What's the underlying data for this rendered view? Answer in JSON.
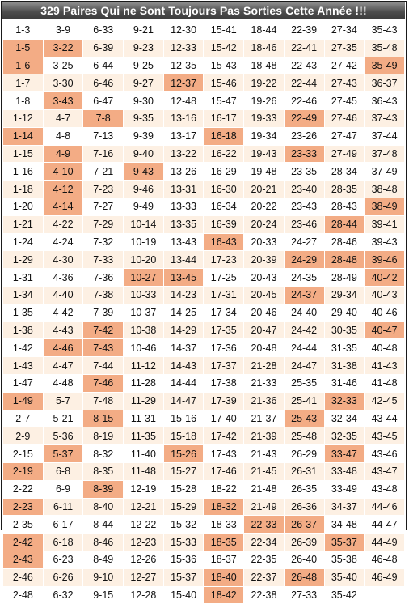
{
  "title": "329 Paires Qui ne Sont Toujours Pas Sorties Cette Année !!!",
  "highlight_color": "#f3ac85",
  "stripe_color": "#fdf0e3",
  "rows": [
    [
      "1-3",
      "3-9",
      "6-33",
      "9-21",
      "12-30",
      "15-41",
      "18-44",
      "22-39",
      "27-34",
      "35-43"
    ],
    [
      "1-5",
      "3-22",
      "6-39",
      "9-23",
      "12-33",
      "15-42",
      "18-46",
      "22-41",
      "27-35",
      "35-48"
    ],
    [
      "1-6",
      "3-25",
      "6-44",
      "9-25",
      "12-35",
      "15-43",
      "18-48",
      "22-43",
      "27-42",
      "35-49"
    ],
    [
      "1-7",
      "3-30",
      "6-46",
      "9-27",
      "12-37",
      "15-46",
      "19-22",
      "22-44",
      "27-43",
      "36-37"
    ],
    [
      "1-8",
      "3-43",
      "6-47",
      "9-30",
      "12-48",
      "15-47",
      "19-26",
      "22-46",
      "27-45",
      "36-43"
    ],
    [
      "1-12",
      "4-7",
      "7-8",
      "9-35",
      "13-16",
      "16-17",
      "19-33",
      "22-49",
      "27-46",
      "37-43"
    ],
    [
      "1-14",
      "4-8",
      "7-13",
      "9-39",
      "13-17",
      "16-18",
      "19-34",
      "23-26",
      "27-47",
      "37-44"
    ],
    [
      "1-15",
      "4-9",
      "7-16",
      "9-40",
      "13-22",
      "16-22",
      "19-43",
      "23-33",
      "27-49",
      "37-48"
    ],
    [
      "1-16",
      "4-10",
      "7-21",
      "9-43",
      "13-26",
      "16-29",
      "19-48",
      "23-35",
      "28-34",
      "37-49"
    ],
    [
      "1-18",
      "4-12",
      "7-23",
      "9-46",
      "13-31",
      "16-30",
      "20-21",
      "23-40",
      "28-35",
      "38-48"
    ],
    [
      "1-20",
      "4-14",
      "7-27",
      "9-49",
      "13-33",
      "16-34",
      "20-22",
      "23-43",
      "28-43",
      "38-49"
    ],
    [
      "1-21",
      "4-22",
      "7-29",
      "10-14",
      "13-35",
      "16-39",
      "20-24",
      "23-46",
      "28-44",
      "39-41"
    ],
    [
      "1-24",
      "4-24",
      "7-32",
      "10-19",
      "13-43",
      "16-43",
      "20-33",
      "24-27",
      "28-46",
      "39-43"
    ],
    [
      "1-29",
      "4-30",
      "7-33",
      "10-20",
      "13-44",
      "17-23",
      "20-39",
      "24-29",
      "28-48",
      "39-46"
    ],
    [
      "1-31",
      "4-36",
      "7-36",
      "10-27",
      "13-45",
      "17-25",
      "20-43",
      "24-35",
      "28-49",
      "40-42"
    ],
    [
      "1-34",
      "4-40",
      "7-38",
      "10-33",
      "14-23",
      "17-31",
      "20-45",
      "24-37",
      "29-34",
      "40-43"
    ],
    [
      "1-35",
      "4-42",
      "7-39",
      "10-37",
      "14-25",
      "17-34",
      "20-46",
      "24-40",
      "29-40",
      "40-46"
    ],
    [
      "1-38",
      "4-43",
      "7-42",
      "10-38",
      "14-29",
      "17-35",
      "20-47",
      "24-42",
      "30-35",
      "40-47"
    ],
    [
      "1-42",
      "4-46",
      "7-43",
      "10-46",
      "14-37",
      "17-36",
      "20-48",
      "24-44",
      "31-35",
      "40-48"
    ],
    [
      "1-43",
      "4-47",
      "7-44",
      "11-12",
      "14-43",
      "17-37",
      "21-28",
      "24-47",
      "31-38",
      "41-43"
    ],
    [
      "1-47",
      "4-48",
      "7-46",
      "11-28",
      "14-44",
      "17-38",
      "21-33",
      "25-35",
      "31-46",
      "41-48"
    ],
    [
      "1-49",
      "5-7",
      "7-48",
      "11-29",
      "14-47",
      "17-39",
      "21-36",
      "25-41",
      "32-33",
      "42-45"
    ],
    [
      "2-7",
      "5-21",
      "8-15",
      "11-31",
      "15-16",
      "17-40",
      "21-37",
      "25-43",
      "32-34",
      "43-44"
    ],
    [
      "2-9",
      "5-36",
      "8-19",
      "11-35",
      "15-18",
      "17-42",
      "21-39",
      "25-48",
      "32-35",
      "43-45"
    ],
    [
      "2-15",
      "5-37",
      "8-32",
      "11-40",
      "15-26",
      "17-43",
      "21-43",
      "26-29",
      "33-47",
      "43-46"
    ],
    [
      "2-19",
      "6-8",
      "8-35",
      "11-48",
      "15-27",
      "17-46",
      "21-45",
      "26-31",
      "33-48",
      "43-47"
    ],
    [
      "2-22",
      "6-9",
      "8-39",
      "12-19",
      "15-28",
      "18-22",
      "21-48",
      "26-35",
      "33-49",
      "43-48"
    ],
    [
      "2-23",
      "6-11",
      "8-40",
      "12-21",
      "15-29",
      "18-32",
      "21-49",
      "26-36",
      "34-37",
      "44-46"
    ],
    [
      "2-35",
      "6-17",
      "8-44",
      "12-22",
      "15-32",
      "18-33",
      "22-33",
      "26-37",
      "34-48",
      "44-47"
    ],
    [
      "2-42",
      "6-18",
      "8-46",
      "12-23",
      "15-33",
      "18-35",
      "22-34",
      "26-39",
      "35-37",
      "44-49"
    ],
    [
      "2-43",
      "6-23",
      "8-49",
      "12-26",
      "15-36",
      "18-37",
      "22-35",
      "26-40",
      "35-38",
      "46-48"
    ],
    [
      "2-46",
      "6-26",
      "9-10",
      "12-27",
      "15-37",
      "18-40",
      "22-37",
      "26-48",
      "35-40",
      "46-49"
    ],
    [
      "2-48",
      "6-32",
      "9-15",
      "12-28",
      "15-40",
      "18-42",
      "22-38",
      "27-33",
      "35-42",
      ""
    ]
  ],
  "highlighted": [
    "1-5",
    "1-6",
    "1-14",
    "1-49",
    "2-19",
    "2-23",
    "2-42",
    "2-43",
    "3-22",
    "3-43",
    "4-9",
    "4-10",
    "4-12",
    "4-14",
    "4-46",
    "5-37",
    "7-8",
    "7-42",
    "7-43",
    "7-46",
    "8-15",
    "8-39",
    "9-43",
    "10-27",
    "12-37",
    "13-45",
    "15-26",
    "16-18",
    "16-43",
    "18-32",
    "18-35",
    "18-40",
    "18-42",
    "22-33",
    "22-49",
    "23-33",
    "24-29",
    "24-37",
    "25-43",
    "26-37",
    "26-48",
    "28-44",
    "28-48",
    "32-33",
    "33-47",
    "35-37",
    "35-49",
    "38-49",
    "39-46",
    "40-42",
    "40-47"
  ]
}
